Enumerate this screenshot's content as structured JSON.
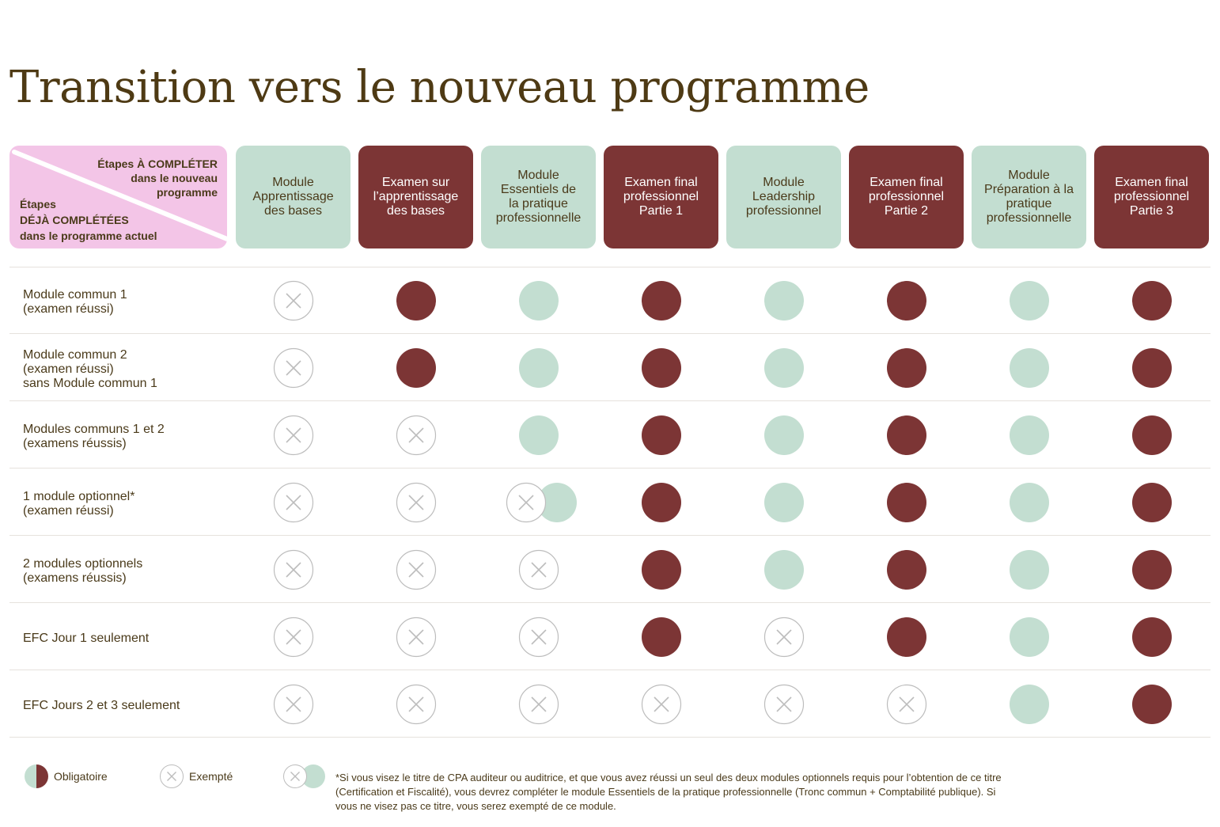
{
  "title": "Transition vers le nouveau programme",
  "corner": {
    "top_text": "Étapes À COMPLÉTER\ndans le nouveau\nprogramme",
    "bottom_text": "Étapes\nDÉJÀ COMPLÉTÉES\ndans le programme actuel"
  },
  "columns": [
    {
      "label": "Module\nApprentissage\ndes bases",
      "type": "module"
    },
    {
      "label": "Examen sur\nl’apprentissage\ndes bases",
      "type": "exam"
    },
    {
      "label": "Module\nEssentiels de\nla pratique\nprofessionnelle",
      "type": "module"
    },
    {
      "label": "Examen final\nprofessionnel\nPartie 1",
      "type": "exam"
    },
    {
      "label": "Module\nLeadership\nprofessionnel",
      "type": "module"
    },
    {
      "label": "Examen final\nprofessionnel\nPartie 2",
      "type": "exam"
    },
    {
      "label": "Module\nPréparation à la\npratique\nprofessionnelle",
      "type": "module"
    },
    {
      "label": "Examen final\nprofessionnel\nPartie 3",
      "type": "exam"
    }
  ],
  "rows": [
    {
      "label": "Module commun 1\n(examen réussi)",
      "cells": [
        "exempt",
        "required",
        "required",
        "required",
        "required",
        "required",
        "required",
        "required"
      ]
    },
    {
      "label": "Module commun 2\n(examen réussi)\nsans Module commun 1",
      "cells": [
        "exempt",
        "required",
        "required",
        "required",
        "required",
        "required",
        "required",
        "required"
      ]
    },
    {
      "label": "Modules communs 1 et 2\n(examens réussis)",
      "cells": [
        "exempt",
        "exempt",
        "required",
        "required",
        "required",
        "required",
        "required",
        "required"
      ]
    },
    {
      "label": "1 module optionnel*\n(examen réussi)",
      "cells": [
        "exempt",
        "exempt",
        "conditional",
        "required",
        "required",
        "required",
        "required",
        "required"
      ]
    },
    {
      "label": "2 modules optionnels\n(examens réussis)",
      "cells": [
        "exempt",
        "exempt",
        "exempt",
        "required",
        "required",
        "required",
        "required",
        "required"
      ]
    },
    {
      "label": "EFC Jour 1 seulement",
      "cells": [
        "exempt",
        "exempt",
        "exempt",
        "required",
        "exempt",
        "required",
        "required",
        "required"
      ]
    },
    {
      "label": "EFC Jours 2 et 3 seulement",
      "cells": [
        "exempt",
        "exempt",
        "exempt",
        "exempt",
        "exempt",
        "exempt",
        "required",
        "required"
      ]
    }
  ],
  "legend": {
    "required_label": "Obligatoire",
    "exempt_label": "Exempté",
    "footnote": "*Si vous visez le titre de CPA auditeur ou auditrice, et que vous avez réussi un seul des deux modules optionnels requis pour l’obtention de ce titre (Certification et Fiscalité), vous devrez compléter le module Essentiels de la pratique professionnelle (Tronc commun + Comptabilité publique). Si vous ne visez pas ce titre, vous serez exempté de ce module."
  },
  "colors": {
    "module": "#c3ded1",
    "exam": "#7c3535",
    "corner": "#f3c5e7",
    "exempt_stroke": "#bdbdbd",
    "title": "#4e3a14"
  }
}
